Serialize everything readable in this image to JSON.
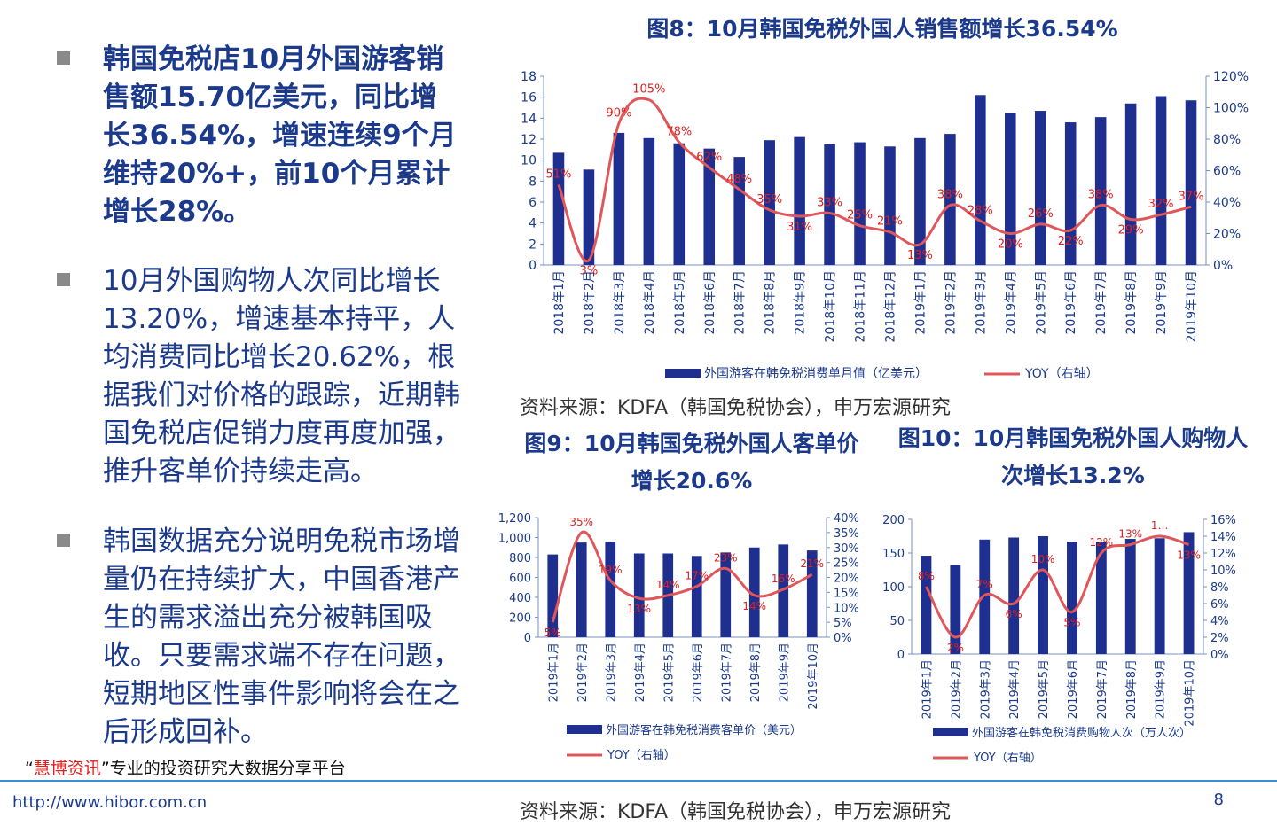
{
  "bullets": [
    {
      "text": "韩国免税店10月外国游客销售额15.70亿美元，同比增长36.54%，增速连续9个月维持20%+，前10个月累计增长28%。",
      "bold": true
    },
    {
      "text": "10月外国购物人次同比增长13.20%，增速基本持平，人均消费同比增长20.62%，根据我们对价格的跟踪，近期韩国免税店促销力度再度加强，推升客单价持续走高。",
      "bold": false
    },
    {
      "text": "韩国数据充分说明免税市场增量仍在持续扩大，中国香港产生的需求溢出充分被韩国吸收。只要需求端不存在问题，短期地区性事件影响将会在之后形成回补。",
      "bold": false
    }
  ],
  "sources": {
    "top": "资料来源：KDFA（韩国免税协会），申万宏源研究",
    "bottom": "资料来源：KDFA（韩国免税协会），申万宏源研究"
  },
  "footer": {
    "platform_quote_open": "“",
    "platform_name": "慧博资讯",
    "platform_quote_close": "”",
    "platform_desc": "专业的投资研究大数据分享平台",
    "url": "www.hibor.com.cn",
    "url_prefix": "http://",
    "page": "8"
  },
  "colors": {
    "bar": "#1f2f8f",
    "line": "#e0575b",
    "title": "#1b3a8c",
    "label_red": "#e02020"
  },
  "chart_data": [
    {
      "id": "fig8",
      "type": "bar",
      "title": "图8：10月韩国免税外国人销售额增长36.54%",
      "categories": [
        "2018年1月",
        "2018年2月",
        "2018年3月",
        "2018年4月",
        "2018年5月",
        "2018年6月",
        "2018年7月",
        "2018年8月",
        "2018年9月",
        "2018年10月",
        "2018年11月",
        "2018年12月",
        "2019年1月",
        "2019年2月",
        "2019年3月",
        "2019年4月",
        "2019年5月",
        "2019年6月",
        "2019年7月",
        "2019年8月",
        "2019年9月",
        "2019年10月"
      ],
      "series": [
        {
          "name": "外国游客在韩免税消费单月值（亿美元）",
          "type": "bar",
          "axis": "left",
          "values": [
            10.7,
            9.1,
            12.6,
            12.1,
            11.6,
            11.1,
            10.3,
            11.9,
            12.2,
            11.5,
            11.7,
            11.3,
            12.1,
            12.5,
            16.2,
            14.5,
            14.7,
            13.6,
            14.1,
            15.4,
            16.1,
            15.7
          ]
        },
        {
          "name": "YOY（右轴）",
          "type": "line",
          "axis": "right",
          "values": [
            51,
            3,
            90,
            105,
            78,
            62,
            48,
            35,
            31,
            33,
            25,
            21,
            13,
            38,
            28,
            20,
            26,
            22,
            38,
            29,
            32,
            37
          ],
          "labels": [
            "51%",
            "3%",
            "90%",
            "105%",
            "78%",
            "62%",
            "48%",
            "35%",
            "31%",
            "33%",
            "25%",
            "21%",
            "13%",
            "38%",
            "28%",
            "20%",
            "26%",
            "22%",
            "38%",
            "29%",
            "32%",
            "37%"
          ]
        }
      ],
      "yaxis_left": {
        "range": [
          0,
          18
        ],
        "ticks": [
          "0",
          "2",
          "4",
          "6",
          "8",
          "10",
          "12",
          "14",
          "16",
          "18"
        ]
      },
      "yaxis_right": {
        "range": [
          0,
          120
        ],
        "ticks": [
          "0%",
          "20%",
          "40%",
          "60%",
          "80%",
          "100%",
          "120%"
        ]
      },
      "legend_position": "bottom"
    },
    {
      "id": "fig9",
      "type": "bar",
      "title": "图9：10月韩国免税外国人客单价增长20.6%",
      "categories": [
        "2019年1月",
        "2019年2月",
        "2019年3月",
        "2019年4月",
        "2019年5月",
        "2019年6月",
        "2019年7月",
        "2019年8月",
        "2019年9月",
        "2019年10月"
      ],
      "series": [
        {
          "name": "外国游客在韩免税消费客单价（美元）",
          "type": "bar",
          "axis": "left",
          "values": [
            830,
            950,
            960,
            840,
            840,
            815,
            850,
            900,
            930,
            870
          ]
        },
        {
          "name": "YOY（右轴）",
          "type": "line",
          "axis": "right",
          "values": [
            5,
            35,
            19,
            13,
            14,
            17,
            23,
            14,
            16,
            21
          ],
          "labels": [
            "5%",
            "35%",
            "19%",
            "13%",
            "14%",
            "17%",
            "23%",
            "14%",
            "16%",
            "21%"
          ]
        }
      ],
      "yaxis_left": {
        "range": [
          0,
          1200
        ],
        "ticks": [
          "0",
          "200",
          "400",
          "600",
          "800",
          "1,000",
          "1,200"
        ]
      },
      "yaxis_right": {
        "range": [
          0,
          40
        ],
        "ticks": [
          "0%",
          "5%",
          "10%",
          "15%",
          "20%",
          "25%",
          "30%",
          "35%",
          "40%"
        ]
      },
      "legend_position": "bottom"
    },
    {
      "id": "fig10",
      "type": "bar",
      "title": "图10：10月韩国免税外国人购物人次增长13.2%",
      "categories": [
        "2019年1月",
        "2019年2月",
        "2019年3月",
        "2019年4月",
        "2019年5月",
        "2019年6月",
        "2019年7月",
        "2019年8月",
        "2019年9月",
        "2019年10月"
      ],
      "series": [
        {
          "name": "外国游客在韩免税消费购物人次（万人次）",
          "type": "bar",
          "axis": "left",
          "values": [
            146,
            132,
            170,
            173,
            175,
            167,
            166,
            171,
            172,
            181
          ]
        },
        {
          "name": "YOY（右轴）",
          "type": "line",
          "axis": "right",
          "values": [
            8,
            2,
            7,
            6,
            10,
            5,
            12,
            13,
            14,
            13
          ],
          "labels": [
            "8%",
            "2%",
            "7%",
            "6%",
            "10%",
            "5%",
            "12%",
            "13%",
            "1…",
            "13%"
          ]
        }
      ],
      "yaxis_left": {
        "range": [
          0,
          200
        ],
        "ticks": [
          "0",
          "50",
          "100",
          "150",
          "200"
        ]
      },
      "yaxis_right": {
        "range": [
          0,
          16
        ],
        "ticks": [
          "0%",
          "2%",
          "4%",
          "6%",
          "8%",
          "10%",
          "12%",
          "14%",
          "16%"
        ]
      },
      "legend_position": "bottom"
    }
  ]
}
